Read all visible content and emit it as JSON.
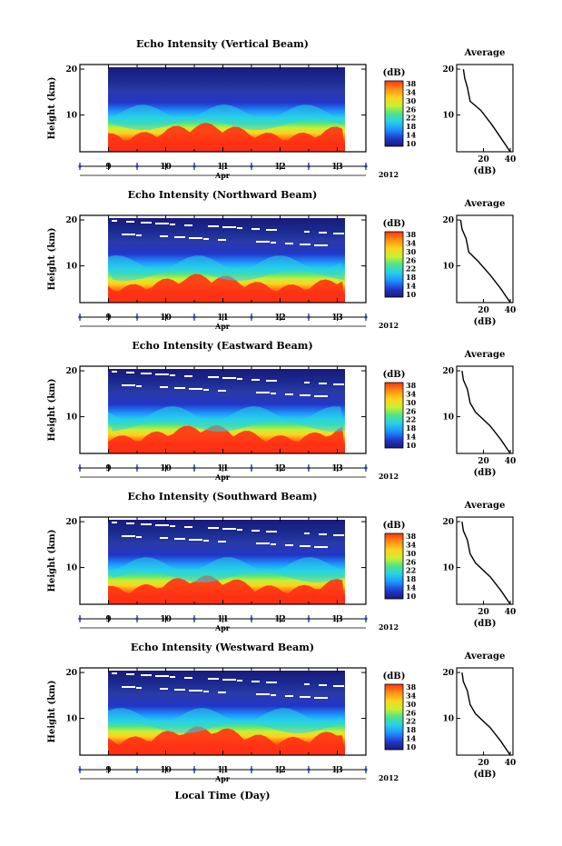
{
  "figure": {
    "xaxis_label": "Local Time (Day)",
    "month_label": "Apr",
    "year_label": "2012",
    "day_ticks": [
      "9",
      "10",
      "11",
      "12",
      "13"
    ],
    "height_label": "Height (km)",
    "height_ticks": [
      "20",
      "10"
    ],
    "colorbar_unit": "(dB)",
    "colorbar_ticks": [
      "38",
      "34",
      "30",
      "26",
      "22",
      "18",
      "14",
      "10"
    ],
    "average_title": "Average",
    "average_xlabel": "(dB)",
    "average_xticks": [
      "20",
      "40"
    ],
    "average_yticks": [
      "20",
      "10"
    ]
  },
  "panels": [
    {
      "title": "Echo Intensity (Vertical Beam)"
    },
    {
      "title": "Echo Intensity (Northward Beam)"
    },
    {
      "title": "Echo Intensity (Eastward Beam)"
    },
    {
      "title": "Echo Intensity (Southward Beam)"
    },
    {
      "title": "Echo Intensity (Westward Beam)"
    }
  ],
  "colors": {
    "scale": [
      "#1a1a7a",
      "#2236c8",
      "#1e90ff",
      "#28d2e6",
      "#4fe38a",
      "#c8f032",
      "#ffd21e",
      "#ff8c14",
      "#ff3214",
      "#e61e1e"
    ]
  },
  "chart_data": [
    {
      "type": "heatmap",
      "title": "Echo Intensity (Vertical Beam)",
      "xlabel": "",
      "ylabel": "Height (km)",
      "x_range_days": [
        8.5,
        13.2
      ],
      "x_data_range_days": [
        9.0,
        13.1
      ],
      "ylim_km": [
        2,
        21
      ],
      "color_range_dB": [
        10,
        38
      ],
      "colorbar_label": "(dB)",
      "description_values": {
        "surface_dB": 38,
        "mid_dB": 24,
        "upper_dB": 14
      },
      "average_profile": {
        "x_dB": [
          40,
          33,
          26,
          18,
          10,
          8,
          6,
          5
        ],
        "y_km": [
          2,
          5,
          8,
          11,
          13,
          16,
          18,
          20
        ]
      }
    },
    {
      "type": "heatmap",
      "title": "Echo Intensity (Northward Beam)",
      "ylabel": "Height (km)",
      "x_range_days": [
        8.5,
        13.2
      ],
      "ylim_km": [
        2,
        21
      ],
      "color_range_dB": [
        10,
        38
      ],
      "average_profile": {
        "x_dB": [
          40,
          33,
          25,
          16,
          9,
          7,
          4,
          3
        ],
        "y_km": [
          2,
          5,
          8,
          11,
          13,
          16,
          18,
          20
        ]
      }
    },
    {
      "type": "heatmap",
      "title": "Echo Intensity (Eastward Beam)",
      "ylabel": "Height (km)",
      "x_range_days": [
        8.5,
        13.2
      ],
      "ylim_km": [
        2,
        21
      ],
      "color_range_dB": [
        10,
        38
      ],
      "average_profile": {
        "x_dB": [
          40,
          33,
          25,
          14,
          10,
          8,
          5,
          4
        ],
        "y_km": [
          2,
          5,
          8,
          11,
          13,
          16,
          18,
          20
        ]
      }
    },
    {
      "type": "heatmap",
      "title": "Echo Intensity (Southward Beam)",
      "ylabel": "Height (km)",
      "x_range_days": [
        8.5,
        13.2
      ],
      "ylim_km": [
        2,
        21
      ],
      "color_range_dB": [
        10,
        38
      ],
      "average_profile": {
        "x_dB": [
          40,
          33,
          25,
          14,
          10,
          8,
          5,
          4
        ],
        "y_km": [
          2,
          5,
          8,
          11,
          13,
          16,
          18,
          20
        ]
      }
    },
    {
      "type": "heatmap",
      "title": "Echo Intensity (Westward Beam)",
      "ylabel": "Height (km)",
      "x_range_days": [
        8.5,
        13.2
      ],
      "ylim_km": [
        2,
        21
      ],
      "color_range_dB": [
        10,
        38
      ],
      "average_profile": {
        "x_dB": [
          40,
          33,
          25,
          14,
          10,
          8,
          5,
          4
        ],
        "y_km": [
          2,
          5,
          8,
          11,
          13,
          16,
          18,
          20
        ]
      }
    }
  ]
}
